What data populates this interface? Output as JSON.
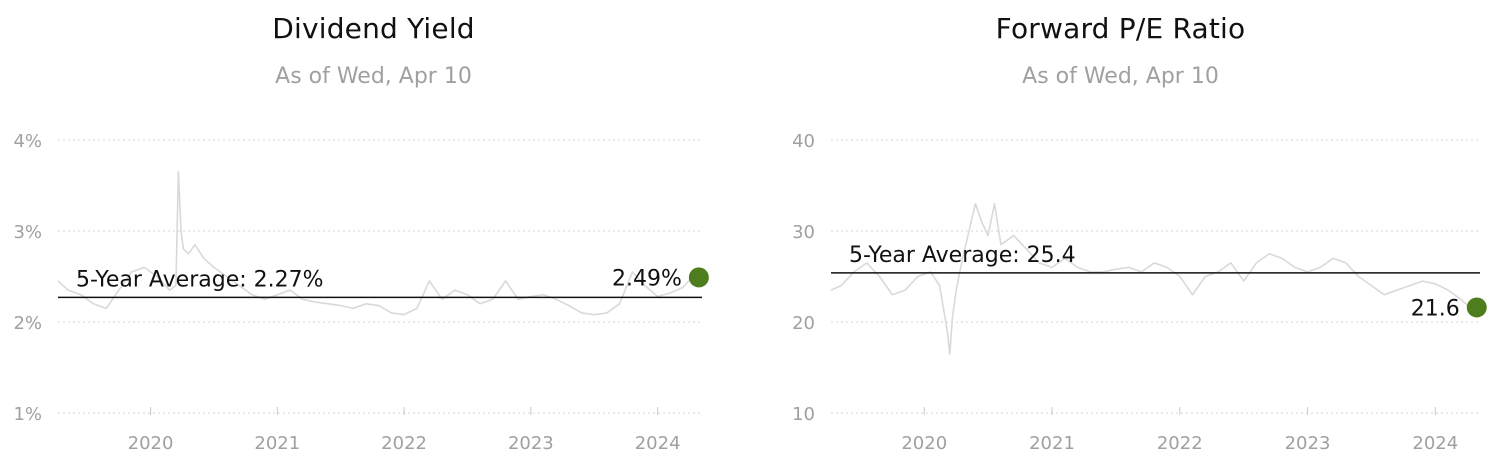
{
  "chart_data": [
    {
      "type": "line",
      "title": "Dividend Yield",
      "subtitle": "As of Wed, Apr 10",
      "y_ticks": [
        1,
        2,
        3,
        4
      ],
      "y_tick_labels": [
        "1%",
        "2%",
        "3%",
        "4%"
      ],
      "ylim": [
        1,
        4
      ],
      "x_ticks": [
        2020,
        2021,
        2022,
        2023,
        2024
      ],
      "x_tick_labels": [
        "2020",
        "2021",
        "2022",
        "2023",
        "2024"
      ],
      "xlim": [
        2019.27,
        2024.35
      ],
      "grid": true,
      "average": {
        "label": "5-Year Average: 2.27%",
        "value": 2.27
      },
      "latest": {
        "label": "2.49%",
        "x": 2024.27,
        "value": 2.49
      },
      "colors": {
        "line": "#d9d9d9",
        "average": "#111111",
        "latest": "#4e7d1e",
        "grid": "#d6d6d6"
      },
      "series": [
        {
          "x": [
            2019.27,
            2019.35,
            2019.45,
            2019.55,
            2019.65,
            2019.75,
            2019.85,
            2019.95,
            2020.05,
            2020.15,
            2020.2,
            2020.22,
            2020.24,
            2020.26,
            2020.3,
            2020.35,
            2020.42,
            2020.5,
            2020.6,
            2020.7,
            2020.8,
            2020.9,
            2021.0,
            2021.1,
            2021.2,
            2021.3,
            2021.4,
            2021.5,
            2021.6,
            2021.7,
            2021.8,
            2021.9,
            2022.0,
            2022.1,
            2022.2,
            2022.3,
            2022.4,
            2022.5,
            2022.6,
            2022.7,
            2022.8,
            2022.9,
            2023.0,
            2023.1,
            2023.2,
            2023.3,
            2023.4,
            2023.5,
            2023.6,
            2023.7,
            2023.8,
            2023.9,
            2024.0,
            2024.1,
            2024.2,
            2024.27
          ],
          "values": [
            2.45,
            2.35,
            2.3,
            2.2,
            2.15,
            2.35,
            2.55,
            2.6,
            2.5,
            2.35,
            2.4,
            3.65,
            3.0,
            2.8,
            2.75,
            2.85,
            2.7,
            2.6,
            2.5,
            2.4,
            2.3,
            2.25,
            2.3,
            2.35,
            2.25,
            2.22,
            2.2,
            2.18,
            2.15,
            2.2,
            2.18,
            2.1,
            2.08,
            2.15,
            2.45,
            2.25,
            2.35,
            2.3,
            2.2,
            2.25,
            2.45,
            2.25,
            2.28,
            2.3,
            2.25,
            2.18,
            2.1,
            2.08,
            2.1,
            2.2,
            2.55,
            2.4,
            2.28,
            2.32,
            2.38,
            2.49
          ]
        }
      ]
    },
    {
      "type": "line",
      "title": "Forward P/E Ratio",
      "subtitle": "As of Wed, Apr 10",
      "y_ticks": [
        10,
        20,
        30,
        40
      ],
      "y_tick_labels": [
        "10",
        "20",
        "30",
        "40"
      ],
      "ylim": [
        10,
        40
      ],
      "x_ticks": [
        2020,
        2021,
        2022,
        2023,
        2024
      ],
      "x_tick_labels": [
        "2020",
        "2021",
        "2022",
        "2023",
        "2024"
      ],
      "xlim": [
        2019.27,
        2024.35
      ],
      "grid": true,
      "average": {
        "label": "5-Year Average: 25.4",
        "value": 25.4
      },
      "latest": {
        "label": "21.6",
        "x": 2024.27,
        "value": 21.6
      },
      "colors": {
        "line": "#d9d9d9",
        "average": "#111111",
        "latest": "#4e7d1e",
        "grid": "#d6d6d6"
      },
      "series": [
        {
          "x": [
            2019.27,
            2019.35,
            2019.45,
            2019.55,
            2019.65,
            2019.75,
            2019.85,
            2019.95,
            2020.05,
            2020.12,
            2020.18,
            2020.2,
            2020.22,
            2020.25,
            2020.3,
            2020.35,
            2020.4,
            2020.45,
            2020.5,
            2020.55,
            2020.6,
            2020.7,
            2020.8,
            2020.9,
            2021.0,
            2021.1,
            2021.2,
            2021.3,
            2021.4,
            2021.5,
            2021.6,
            2021.7,
            2021.8,
            2021.9,
            2022.0,
            2022.1,
            2022.2,
            2022.3,
            2022.4,
            2022.5,
            2022.6,
            2022.7,
            2022.8,
            2022.9,
            2023.0,
            2023.1,
            2023.2,
            2023.3,
            2023.4,
            2023.5,
            2023.6,
            2023.7,
            2023.8,
            2023.9,
            2024.0,
            2024.1,
            2024.2,
            2024.27
          ],
          "values": [
            23.5,
            24.0,
            25.5,
            26.5,
            25.0,
            23.0,
            23.5,
            25.0,
            25.5,
            24.0,
            19.0,
            16.5,
            20.5,
            23.5,
            27.0,
            30.0,
            33.0,
            31.0,
            29.5,
            33.0,
            28.5,
            29.5,
            28.0,
            26.5,
            26.0,
            27.0,
            26.0,
            25.5,
            25.5,
            25.8,
            26.0,
            25.5,
            26.5,
            26.0,
            25.0,
            23.0,
            25.0,
            25.5,
            26.5,
            24.5,
            26.5,
            27.5,
            27.0,
            26.0,
            25.5,
            26.0,
            27.0,
            26.5,
            25.0,
            24.0,
            23.0,
            23.5,
            24.0,
            24.5,
            24.2,
            23.5,
            22.5,
            21.6
          ]
        }
      ]
    }
  ]
}
